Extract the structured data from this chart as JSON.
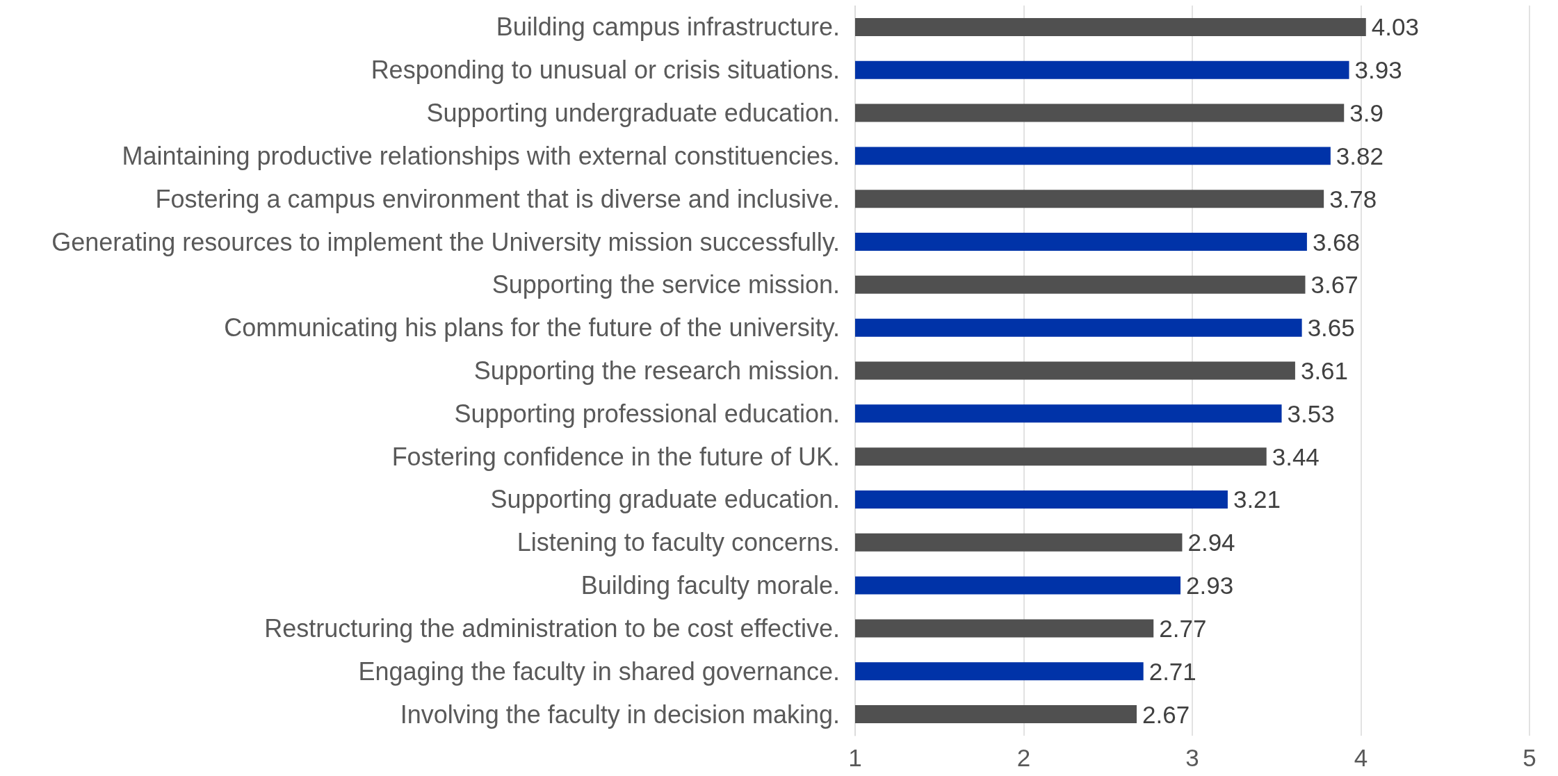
{
  "chart_data": {
    "type": "bar",
    "orientation": "horizontal",
    "categories": [
      "Building campus infrastructure.",
      "Responding to unusual or crisis situations.",
      "Supporting undergraduate education.",
      "Maintaining productive relationships with external constituencies.",
      "Fostering a campus environment that is diverse and inclusive.",
      "Generating resources to implement the University mission successfully.",
      "Supporting the service mission.",
      "Communicating his plans for the future of the university.",
      "Supporting the research mission.",
      "Supporting professional education.",
      "Fostering confidence in the future of UK.",
      "Supporting graduate education.",
      "Listening to faculty concerns.",
      "Building faculty morale.",
      "Restructuring the administration to be cost effective.",
      "Engaging the faculty in shared governance.",
      "Involving the faculty in decision making."
    ],
    "values": [
      4.03,
      3.93,
      3.9,
      3.82,
      3.78,
      3.68,
      3.67,
      3.65,
      3.61,
      3.53,
      3.44,
      3.21,
      2.94,
      2.93,
      2.77,
      2.71,
      2.67
    ],
    "colors": [
      "#505050",
      "#0033a8",
      "#505050",
      "#0033a8",
      "#505050",
      "#0033a8",
      "#505050",
      "#0033a8",
      "#505050",
      "#0033a8",
      "#505050",
      "#0033a8",
      "#505050",
      "#0033a8",
      "#505050",
      "#0033a8",
      "#505050"
    ],
    "xlim": [
      1,
      5
    ],
    "xticks": [
      1,
      2,
      3,
      4,
      5
    ],
    "grid": "x",
    "data_labels": true
  }
}
